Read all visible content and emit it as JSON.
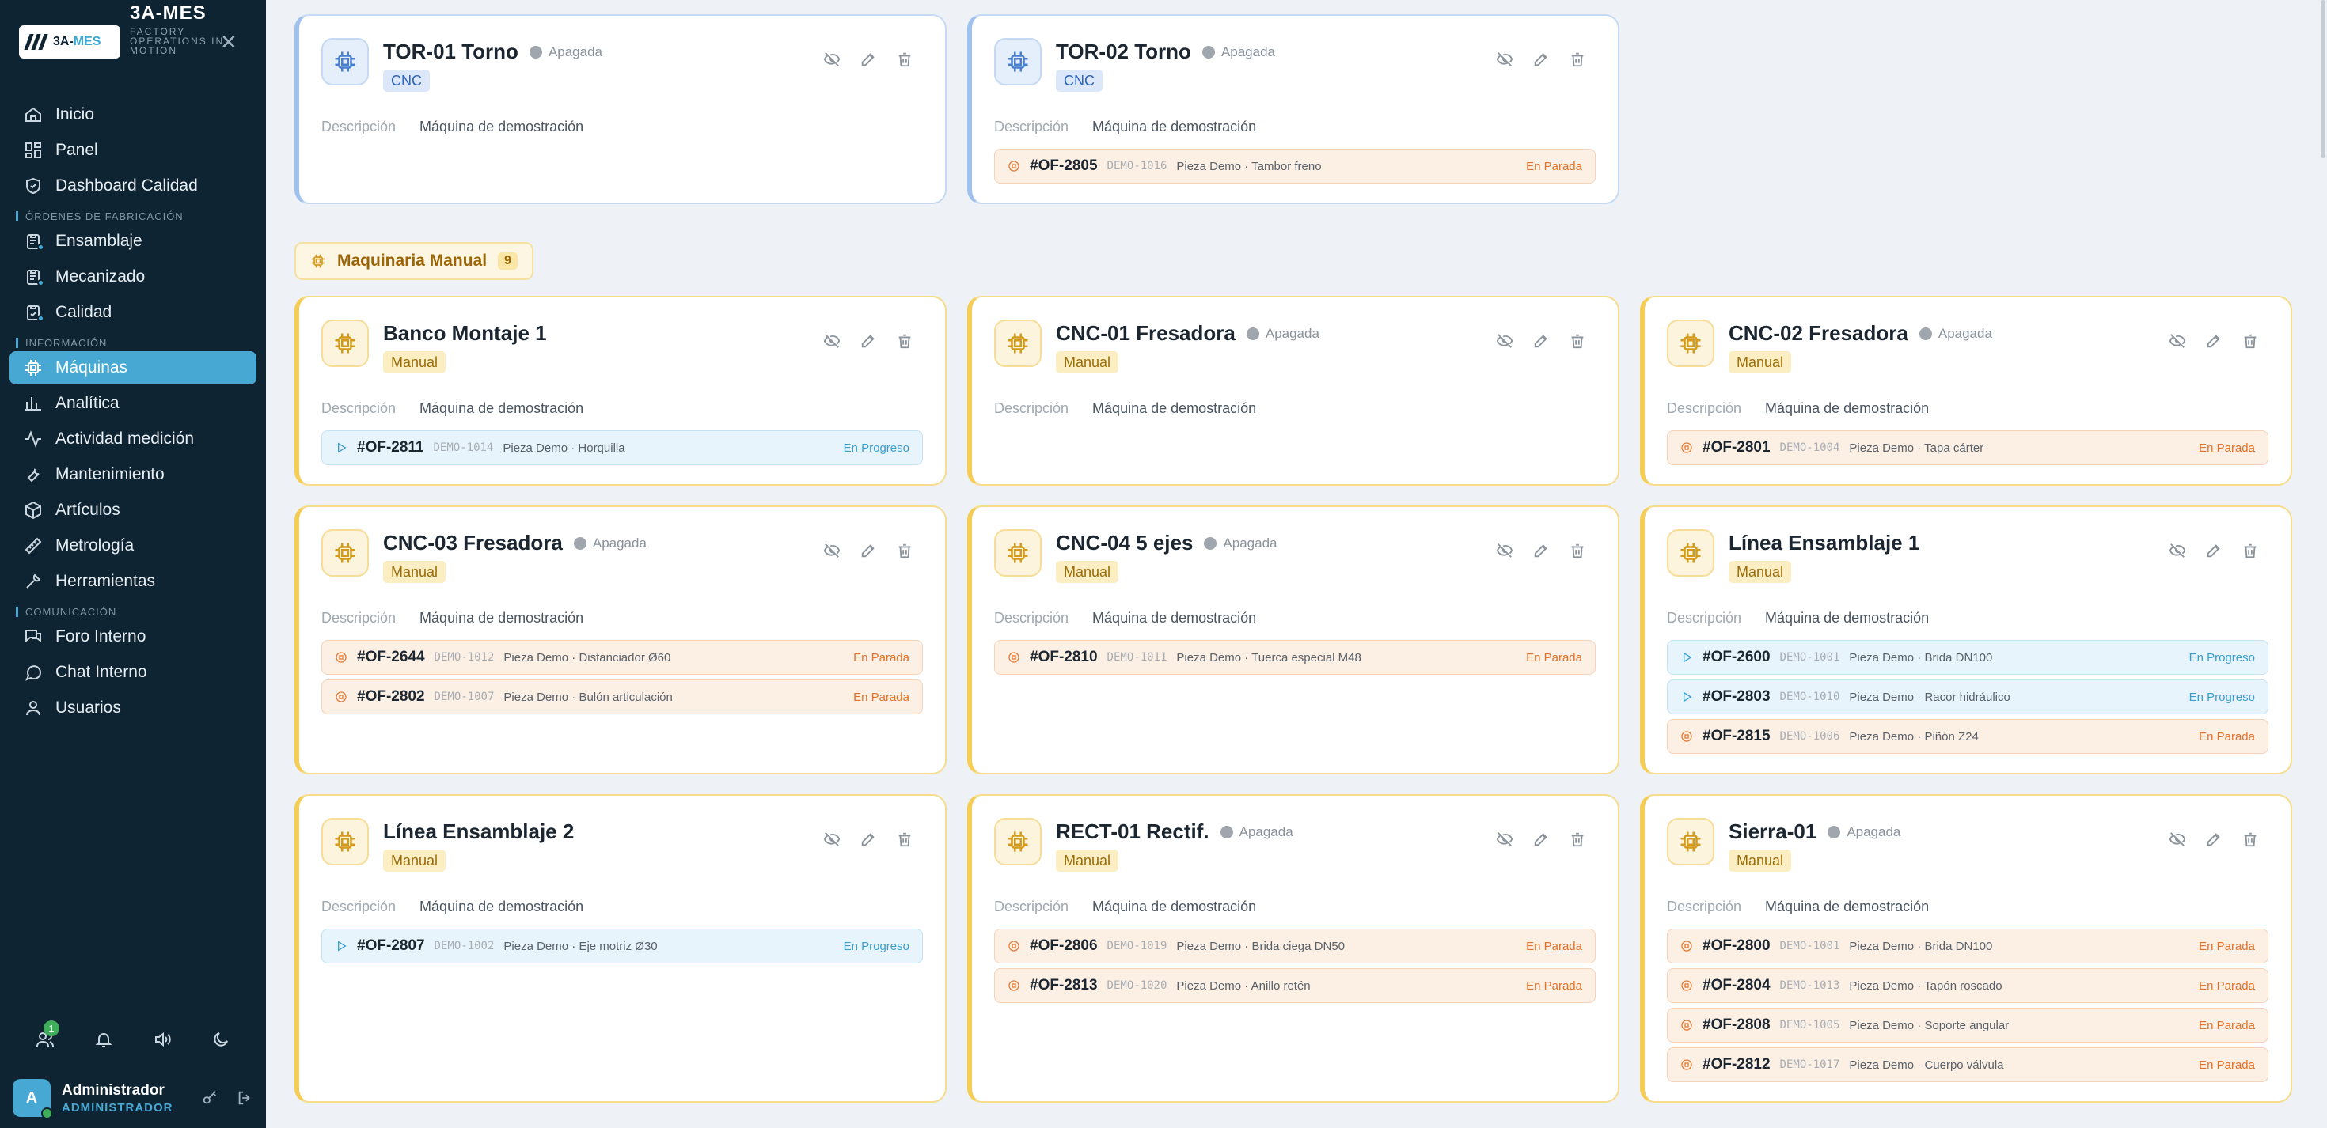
{
  "brand": {
    "logo_prefix": "3A-",
    "logo_accent": "MES",
    "name": "3A-MES",
    "tagline": "FACTORY OPERATIONS IN MOTION"
  },
  "nav": {
    "inicio": "Inicio",
    "panel": "Panel",
    "dashboard": "Dashboard Calidad",
    "sec_ordenes": "ÓRDENES DE FABRICACIÓN",
    "ensamblaje": "Ensamblaje",
    "mecanizado": "Mecanizado",
    "calidad": "Calidad",
    "sec_info": "INFORMACIÓN",
    "maquinas": "Máquinas",
    "analitica": "Analítica",
    "actividad": "Actividad medición",
    "mantenimiento": "Mantenimiento",
    "articulos": "Artículos",
    "metrologia": "Metrología",
    "herramientas": "Herramientas",
    "sec_com": "COMUNICACIÓN",
    "foro": "Foro Interno",
    "chat": "Chat Interno",
    "usuarios": "Usuarios"
  },
  "users_badge": "1",
  "user": {
    "initial": "A",
    "name": "Administrador",
    "role": "ADMINISTRADOR"
  },
  "group": {
    "name": "Maquinaria Manual",
    "count": "9"
  },
  "labels": {
    "desc_key": "Descripción",
    "status_off": "Apagada"
  },
  "colors": {
    "accent": "#47a9d3",
    "manual": "#f5cc54",
    "cnc": "#9fc1ee",
    "parada": "#e27229",
    "progreso": "#3a9fd0"
  },
  "machines": [
    {
      "name": "TOR-01 Torno",
      "status": "Apagada",
      "type": "CNC",
      "desc": "Máquina de demostración",
      "orders": []
    },
    {
      "name": "TOR-02 Torno",
      "status": "Apagada",
      "type": "CNC",
      "desc": "Máquina de demostración",
      "orders": [
        {
          "code": "#OF-2805",
          "demo": "DEMO-1016",
          "piece": "Pieza Demo · Tambor freno",
          "state": "En Parada",
          "kind": "stop"
        }
      ]
    },
    {
      "name": "Banco Montaje 1",
      "status": "",
      "type": "Manual",
      "desc": "Máquina de demostración",
      "orders": [
        {
          "code": "#OF-2811",
          "demo": "DEMO-1014",
          "piece": "Pieza Demo · Horquilla",
          "state": "En Progreso",
          "kind": "prog"
        }
      ]
    },
    {
      "name": "CNC-01 Fresadora",
      "status": "Apagada",
      "type": "Manual",
      "desc": "Máquina de demostración",
      "orders": []
    },
    {
      "name": "CNC-02 Fresadora",
      "status": "Apagada",
      "type": "Manual",
      "desc": "Máquina de demostración",
      "orders": [
        {
          "code": "#OF-2801",
          "demo": "DEMO-1004",
          "piece": "Pieza Demo · Tapa cárter",
          "state": "En Parada",
          "kind": "stop"
        }
      ]
    },
    {
      "name": "CNC-03 Fresadora",
      "status": "Apagada",
      "type": "Manual",
      "desc": "Máquina de demostración",
      "orders": [
        {
          "code": "#OF-2644",
          "demo": "DEMO-1012",
          "piece": "Pieza Demo · Distanciador Ø60",
          "state": "En Parada",
          "kind": "stop"
        },
        {
          "code": "#OF-2802",
          "demo": "DEMO-1007",
          "piece": "Pieza Demo · Bulón articulación",
          "state": "En Parada",
          "kind": "stop"
        }
      ]
    },
    {
      "name": "CNC-04 5 ejes",
      "status": "Apagada",
      "type": "Manual",
      "desc": "Máquina de demostración",
      "orders": [
        {
          "code": "#OF-2810",
          "demo": "DEMO-1011",
          "piece": "Pieza Demo · Tuerca especial M48",
          "state": "En Parada",
          "kind": "stop"
        }
      ]
    },
    {
      "name": "Línea Ensamblaje 1",
      "status": "",
      "type": "Manual",
      "desc": "Máquina de demostración",
      "orders": [
        {
          "code": "#OF-2600",
          "demo": "DEMO-1001",
          "piece": "Pieza Demo · Brida DN100",
          "state": "En Progreso",
          "kind": "prog"
        },
        {
          "code": "#OF-2803",
          "demo": "DEMO-1010",
          "piece": "Pieza Demo · Racor hidráulico",
          "state": "En Progreso",
          "kind": "prog"
        },
        {
          "code": "#OF-2815",
          "demo": "DEMO-1006",
          "piece": "Pieza Demo · Piñón Z24",
          "state": "En Parada",
          "kind": "stop"
        }
      ]
    },
    {
      "name": "Línea Ensamblaje 2",
      "status": "",
      "type": "Manual",
      "desc": "Máquina de demostración",
      "orders": [
        {
          "code": "#OF-2807",
          "demo": "DEMO-1002",
          "piece": "Pieza Demo · Eje motriz Ø30",
          "state": "En Progreso",
          "kind": "prog"
        }
      ]
    },
    {
      "name": "RECT-01 Rectif.",
      "status": "Apagada",
      "type": "Manual",
      "desc": "Máquina de demostración",
      "orders": [
        {
          "code": "#OF-2806",
          "demo": "DEMO-1019",
          "piece": "Pieza Demo · Brida ciega DN50",
          "state": "En Parada",
          "kind": "stop"
        },
        {
          "code": "#OF-2813",
          "demo": "DEMO-1020",
          "piece": "Pieza Demo · Anillo retén",
          "state": "En Parada",
          "kind": "stop"
        }
      ]
    },
    {
      "name": "Sierra-01",
      "status": "Apagada",
      "type": "Manual",
      "desc": "Máquina de demostración",
      "orders": [
        {
          "code": "#OF-2800",
          "demo": "DEMO-1001",
          "piece": "Pieza Demo · Brida DN100",
          "state": "En Parada",
          "kind": "stop"
        },
        {
          "code": "#OF-2804",
          "demo": "DEMO-1013",
          "piece": "Pieza Demo · Tapón roscado",
          "state": "En Parada",
          "kind": "stop"
        },
        {
          "code": "#OF-2808",
          "demo": "DEMO-1005",
          "piece": "Pieza Demo · Soporte angular",
          "state": "En Parada",
          "kind": "stop"
        },
        {
          "code": "#OF-2812",
          "demo": "DEMO-1017",
          "piece": "Pieza Demo · Cuerpo válvula",
          "state": "En Parada",
          "kind": "stop"
        }
      ]
    }
  ]
}
